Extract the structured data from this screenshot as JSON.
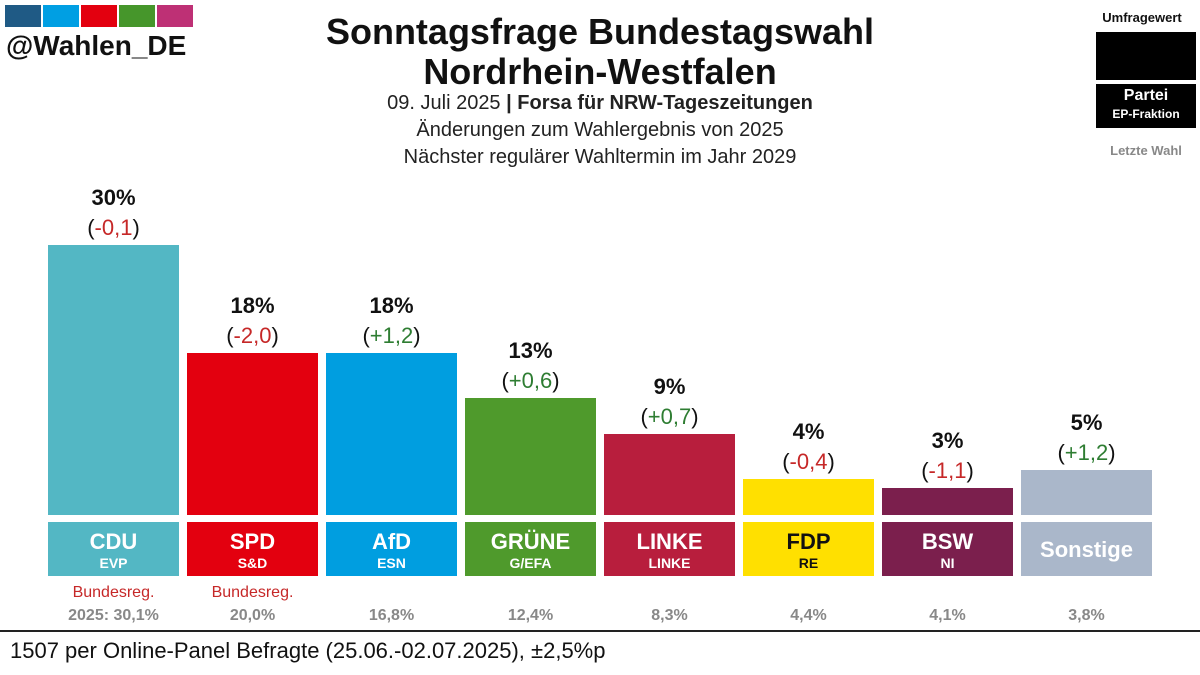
{
  "brand": {
    "handle": "@Wahlen_DE"
  },
  "logo_colors": [
    "#1f5a85",
    "#009fe3",
    "#e3000f",
    "#46962b",
    "#be3075"
  ],
  "header": {
    "title_line1": "Sonntagsfrage Bundestagswahl",
    "title_line2": "Nordrhein-Westfalen",
    "date": "09. Juli 2025",
    "separator": "|",
    "source": "Forsa für NRW-Tageszeitungen",
    "changes_note": "Änderungen zum Wahlergebnis von 2025",
    "next_election": "Nächster regulärer Wahltermin im Jahr 2029"
  },
  "legend": {
    "value_label": "Umfragewert",
    "party_label": "Partei",
    "faction_label": "EP-Fraktion",
    "last_label": "Letzte Wahl"
  },
  "colors": {
    "positive": "#2e7d32",
    "negative": "#c62828",
    "muted": "#888888",
    "gov": "#c62828"
  },
  "chart_data": {
    "type": "bar",
    "title": "Sonntagsfrage Bundestagswahl Nordrhein-Westfalen",
    "ylim": [
      0,
      30
    ],
    "categories": [
      "CDU",
      "SPD",
      "AfD",
      "GRÜNE",
      "LINKE",
      "FDP",
      "BSW",
      "Sonstige"
    ],
    "values": [
      30,
      18,
      18,
      13,
      9,
      4,
      3,
      5
    ],
    "value_labels": [
      "30%",
      "18%",
      "18%",
      "13%",
      "9%",
      "4%",
      "3%",
      "5%"
    ],
    "change_labels": [
      "-0,1",
      "-2,0",
      "+1,2",
      "+0,6",
      "+0,7",
      "-0,4",
      "-1,1",
      "+1,2"
    ],
    "changes": [
      -0.1,
      -2.0,
      1.2,
      0.6,
      0.7,
      -0.4,
      -1.1,
      1.2
    ],
    "factions": [
      "EVP",
      "S&D",
      "ESN",
      "G/EFA",
      "LINKE",
      "RE",
      "NI",
      ""
    ],
    "government": [
      "Bundesreg.",
      "Bundesreg.",
      "",
      "",
      "",
      "",
      "",
      ""
    ],
    "last_results": [
      "2025: 30,1%",
      "20,0%",
      "16,8%",
      "12,4%",
      "8,3%",
      "4,4%",
      "4,1%",
      "3,8%"
    ],
    "colors": [
      "#53b7c4",
      "#e3000f",
      "#009ee0",
      "#4f9a2c",
      "#b81e3d",
      "#ffe000",
      "#7b1f4d",
      "#aab7ca"
    ],
    "label_colors": [
      "#ffffff",
      "#ffffff",
      "#ffffff",
      "#ffffff",
      "#ffffff",
      "#111111",
      "#ffffff",
      "#ffffff"
    ]
  },
  "footer": {
    "note": "1507 per Online-Panel Befragte (25.06.-02.07.2025), ±2,5%p"
  }
}
